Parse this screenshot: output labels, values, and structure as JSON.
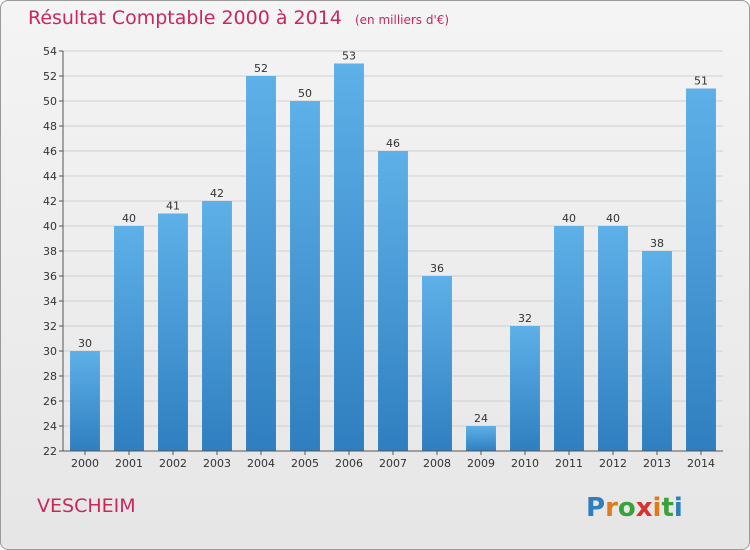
{
  "title": "Résultat Comptable 2000 à 2014",
  "subtitle": "(en milliers d'€)",
  "commune": "VESCHEIM",
  "logo_text": "Proxiti",
  "colors": {
    "accent": "#c8285a",
    "bar_top": "#5eb0e8",
    "bar_bottom": "#2f7fc0"
  },
  "chart_data": {
    "type": "bar",
    "title": "Résultat Comptable 2000 à 2014",
    "subtitle": "(en milliers d'€)",
    "xlabel": "",
    "ylabel": "",
    "categories": [
      "2000",
      "2001",
      "2002",
      "2003",
      "2004",
      "2005",
      "2006",
      "2007",
      "2008",
      "2009",
      "2010",
      "2011",
      "2012",
      "2013",
      "2014"
    ],
    "values": [
      30,
      40,
      41,
      42,
      52,
      50,
      53,
      46,
      36,
      24,
      32,
      40,
      40,
      38,
      51
    ],
    "ylim": [
      22,
      54
    ],
    "yticks": [
      22,
      24,
      26,
      28,
      30,
      32,
      34,
      36,
      38,
      40,
      42,
      44,
      46,
      48,
      50,
      52,
      54
    ],
    "grid": true,
    "legend": "none"
  }
}
